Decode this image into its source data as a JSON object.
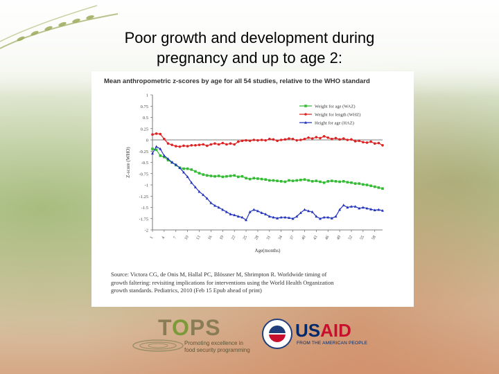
{
  "slide": {
    "title_line1": "Poor growth and development during",
    "title_line2": "pregnancy and up to age 2:"
  },
  "logos": {
    "tops_word_t": "T",
    "tops_word_o": "O",
    "tops_word_ps": "PS",
    "tops_tagline_1": "Promoting excellence in",
    "tops_tagline_2": "food security programming",
    "usaid_us": "US",
    "usaid_aid": "AID",
    "usaid_sub": "FROM THE AMERICAN PEOPLE",
    "seal_text": "USAID"
  },
  "source": {
    "line1": "Source: Victora CG, de Onis M, Hallal PC, Blössner M, Shrimpton R. Worldwide timing of",
    "line2": "growth faltering: revisiting implications for interventions using the World Health Organization",
    "line3": "growth standards. Pediatrics, 2010 (Feb 15 Epub ahead of print)"
  },
  "colors": {
    "waz": "#33bb33",
    "whz": "#dd2222",
    "haz": "#2233bb"
  },
  "chart_data": {
    "type": "line",
    "title": "Mean anthropometric z-scores by age for all 54 studies, relative to the WHO standard",
    "xlabel": "Age(months)",
    "ylabel": "Z-score (WHO)",
    "ylim": [
      -2,
      1
    ],
    "yticks": [
      1,
      0.75,
      0.5,
      0.25,
      0,
      -0.25,
      -0.5,
      -0.75,
      -1,
      -1.25,
      -1.5,
      -1.75,
      -2
    ],
    "ytick_labels": [
      "1",
      "0.75",
      "0.5",
      "0.25",
      "0",
      "-0.25",
      "-0.5",
      "-0.75",
      "-1",
      "-1.25",
      "-1.5",
      "-1.75",
      "-2"
    ],
    "xlim": [
      1,
      60
    ],
    "xticks": [
      1,
      4,
      7,
      10,
      13,
      16,
      19,
      22,
      25,
      28,
      31,
      34,
      37,
      40,
      43,
      46,
      49,
      52,
      55,
      58
    ],
    "grid": false,
    "legend": "top-right",
    "x": [
      1,
      2,
      3,
      4,
      5,
      6,
      7,
      8,
      9,
      10,
      11,
      12,
      13,
      14,
      15,
      16,
      17,
      18,
      19,
      20,
      21,
      22,
      23,
      24,
      25,
      26,
      27,
      28,
      29,
      30,
      31,
      32,
      33,
      34,
      35,
      36,
      37,
      38,
      39,
      40,
      41,
      42,
      43,
      44,
      45,
      46,
      47,
      48,
      49,
      50,
      51,
      52,
      53,
      54,
      55,
      56,
      57,
      58,
      59,
      60
    ],
    "series": [
      {
        "name": "Weight for age (WAZ)",
        "values": [
          -0.2,
          -0.22,
          -0.35,
          -0.38,
          -0.45,
          -0.5,
          -0.56,
          -0.62,
          -0.64,
          -0.64,
          -0.66,
          -0.7,
          -0.74,
          -0.77,
          -0.79,
          -0.8,
          -0.81,
          -0.8,
          -0.82,
          -0.81,
          -0.8,
          -0.79,
          -0.82,
          -0.81,
          -0.85,
          -0.87,
          -0.85,
          -0.86,
          -0.87,
          -0.88,
          -0.9,
          -0.9,
          -0.91,
          -0.92,
          -0.93,
          -0.9,
          -0.91,
          -0.9,
          -0.89,
          -0.88,
          -0.9,
          -0.92,
          -0.91,
          -0.93,
          -0.95,
          -0.92,
          -0.91,
          -0.92,
          -0.93,
          -0.92,
          -0.94,
          -0.95,
          -0.97,
          -0.97,
          -0.99,
          -1.0,
          -1.02,
          -1.04,
          -1.06,
          -1.08
        ]
      },
      {
        "name": "Weight for length (WHZ)",
        "values": [
          0.12,
          0.14,
          0.13,
          0.02,
          -0.08,
          -0.11,
          -0.14,
          -0.15,
          -0.13,
          -0.14,
          -0.12,
          -0.12,
          -0.11,
          -0.1,
          -0.13,
          -0.1,
          -0.08,
          -0.1,
          -0.07,
          -0.1,
          -0.08,
          -0.1,
          -0.04,
          -0.02,
          -0.01,
          -0.02,
          0.0,
          -0.01,
          0.0,
          -0.01,
          0.02,
          0.01,
          -0.02,
          0.0,
          0.01,
          0.03,
          0.02,
          -0.01,
          0.0,
          0.02,
          0.05,
          0.03,
          0.06,
          0.04,
          0.08,
          0.05,
          0.02,
          0.04,
          0.01,
          0.03,
          0.0,
          0.01,
          -0.03,
          -0.02,
          -0.05,
          -0.06,
          -0.04,
          -0.08,
          -0.07,
          -0.12
        ]
      },
      {
        "name": "Height for age (HAZ)",
        "values": [
          -0.3,
          -0.15,
          -0.2,
          -0.35,
          -0.42,
          -0.5,
          -0.55,
          -0.62,
          -0.72,
          -0.82,
          -0.95,
          -1.05,
          -1.15,
          -1.22,
          -1.3,
          -1.4,
          -1.46,
          -1.5,
          -1.55,
          -1.6,
          -1.65,
          -1.67,
          -1.7,
          -1.72,
          -1.78,
          -1.6,
          -1.55,
          -1.58,
          -1.62,
          -1.65,
          -1.7,
          -1.72,
          -1.74,
          -1.72,
          -1.72,
          -1.73,
          -1.75,
          -1.7,
          -1.62,
          -1.55,
          -1.58,
          -1.6,
          -1.7,
          -1.75,
          -1.72,
          -1.72,
          -1.74,
          -1.7,
          -1.55,
          -1.45,
          -1.5,
          -1.48,
          -1.48,
          -1.52,
          -1.5,
          -1.52,
          -1.54,
          -1.56,
          -1.55,
          -1.57
        ]
      }
    ]
  }
}
